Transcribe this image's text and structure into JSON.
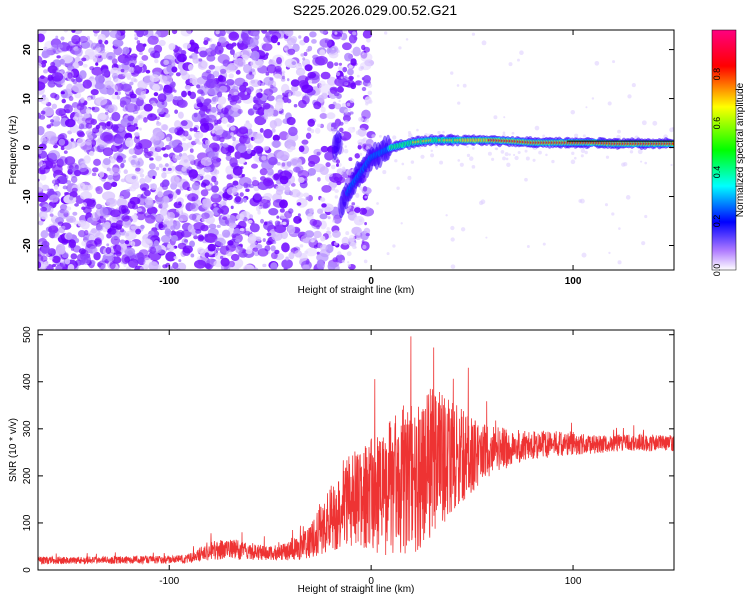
{
  "title": "S225.2026.029.00.52.G21",
  "chart_data": [
    {
      "type": "heatmap",
      "title": "S225.2026.029.00.52.G21",
      "xlabel": "Height of straight line (km)",
      "ylabel": "Frequency (Hz)",
      "xlim": [
        -165,
        150
      ],
      "ylim": [
        -25,
        24
      ],
      "xticks": [
        -100,
        0,
        100
      ],
      "yticks": [
        -20,
        -10,
        0,
        10,
        20
      ],
      "colorbar": {
        "label": "Normalized spectral amplitude",
        "range": [
          0,
          0.98
        ],
        "ticks": [
          0.0,
          0.2,
          0.4,
          0.6,
          0.8
        ],
        "colors": [
          "#ffffff",
          "#8b00ff",
          "#0000ff",
          "#00ffff",
          "#00ff00",
          "#ffff00",
          "#ff0000",
          "#ff00ff"
        ]
      },
      "description_points": {
        "noise_region_x": [
          -165,
          -10
        ],
        "signal_track": {
          "x": [
            -15,
            -10,
            -5,
            0,
            5,
            10,
            15,
            20,
            30,
            40,
            50,
            60,
            70,
            80,
            90,
            100,
            110,
            120,
            130,
            140,
            150
          ],
          "freq": [
            -12,
            -8,
            -5,
            -2,
            -1,
            0,
            0.5,
            1,
            1.5,
            1.5,
            1.5,
            1.5,
            1.3,
            1.0,
            1.0,
            1.0,
            1.0,
            0.8,
            0.8,
            0.8,
            0.8
          ]
        }
      }
    },
    {
      "type": "line",
      "xlabel": "Height of straight line (km)",
      "ylabel": "SNR (10 * v/v)",
      "xlim": [
        -165,
        150
      ],
      "ylim": [
        0,
        510
      ],
      "xticks": [
        -100,
        0,
        100
      ],
      "yticks": [
        0,
        100,
        200,
        300,
        400,
        500
      ],
      "color": "#ee3333",
      "envelope": {
        "x": [
          -165,
          -100,
          -90,
          -80,
          -70,
          -50,
          -40,
          -30,
          -20,
          -10,
          0,
          10,
          20,
          30,
          40,
          50,
          60,
          80,
          100,
          110,
          120,
          150
        ],
        "mean": [
          20,
          22,
          25,
          40,
          45,
          35,
          40,
          60,
          110,
          150,
          160,
          175,
          200,
          230,
          240,
          245,
          255,
          265,
          270,
          265,
          270,
          270
        ],
        "spread": [
          8,
          8,
          10,
          20,
          22,
          15,
          20,
          35,
          70,
          100,
          120,
          150,
          170,
          160,
          120,
          80,
          50,
          30,
          25,
          20,
          18,
          18
        ]
      }
    }
  ]
}
